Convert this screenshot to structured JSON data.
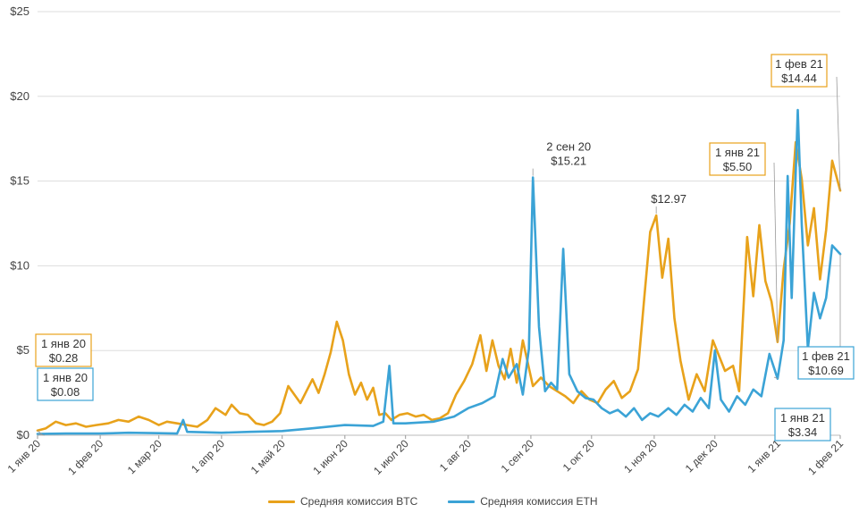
{
  "colors": {
    "btc": "#e8a21b",
    "eth": "#3ba3d6",
    "grid": "#dddddd",
    "leader": "#999999"
  },
  "chart_data": {
    "type": "line",
    "x_range": [
      "2020-01-01",
      "2021-02-01"
    ],
    "ylim": [
      0,
      25
    ],
    "y_ticks": [
      0,
      5,
      10,
      15,
      20,
      25
    ],
    "y_tick_labels": [
      "$0",
      "$5",
      "$10",
      "$15",
      "$20",
      "$25"
    ],
    "x_ticks": [
      "2020-01-01",
      "2020-02-01",
      "2020-03-01",
      "2020-04-01",
      "2020-05-01",
      "2020-06-01",
      "2020-07-01",
      "2020-08-01",
      "2020-09-01",
      "2020-10-01",
      "2020-11-01",
      "2020-12-01",
      "2021-01-01",
      "2021-02-01"
    ],
    "x_tick_labels": [
      "1 янв 20",
      "1 фев 20",
      "1 мар 20",
      "1 апр 20",
      "1 май 20",
      "1 июн 20",
      "1 июл 20",
      "1 авг 20",
      "1 сен 20",
      "1 окт 20",
      "1 ноя 20",
      "1 дек 20",
      "1 янв 21",
      "1 фев 21"
    ],
    "grid": true,
    "legend_position": "bottom",
    "series": [
      {
        "name": "Средняя комиссия BTC",
        "color": "#e8a21b",
        "points": [
          [
            "2020-01-01",
            0.28
          ],
          [
            "2020-01-05",
            0.4
          ],
          [
            "2020-01-10",
            0.8
          ],
          [
            "2020-01-15",
            0.6
          ],
          [
            "2020-01-20",
            0.7
          ],
          [
            "2020-01-25",
            0.5
          ],
          [
            "2020-01-30",
            0.6
          ],
          [
            "2020-02-05",
            0.7
          ],
          [
            "2020-02-10",
            0.9
          ],
          [
            "2020-02-15",
            0.8
          ],
          [
            "2020-02-20",
            1.1
          ],
          [
            "2020-02-25",
            0.9
          ],
          [
            "2020-03-01",
            0.6
          ],
          [
            "2020-03-05",
            0.8
          ],
          [
            "2020-03-10",
            0.7
          ],
          [
            "2020-03-15",
            0.6
          ],
          [
            "2020-03-20",
            0.5
          ],
          [
            "2020-03-25",
            0.9
          ],
          [
            "2020-03-29",
            1.6
          ],
          [
            "2020-04-03",
            1.2
          ],
          [
            "2020-04-06",
            1.8
          ],
          [
            "2020-04-10",
            1.3
          ],
          [
            "2020-04-14",
            1.2
          ],
          [
            "2020-04-18",
            0.7
          ],
          [
            "2020-04-22",
            0.6
          ],
          [
            "2020-04-26",
            0.8
          ],
          [
            "2020-04-30",
            1.3
          ],
          [
            "2020-05-04",
            2.9
          ],
          [
            "2020-05-07",
            2.4
          ],
          [
            "2020-05-10",
            1.9
          ],
          [
            "2020-05-13",
            2.6
          ],
          [
            "2020-05-16",
            3.3
          ],
          [
            "2020-05-19",
            2.5
          ],
          [
            "2020-05-22",
            3.6
          ],
          [
            "2020-05-25",
            4.9
          ],
          [
            "2020-05-28",
            6.7
          ],
          [
            "2020-05-31",
            5.6
          ],
          [
            "2020-06-03",
            3.6
          ],
          [
            "2020-06-06",
            2.4
          ],
          [
            "2020-06-09",
            3.1
          ],
          [
            "2020-06-12",
            2.1
          ],
          [
            "2020-06-15",
            2.8
          ],
          [
            "2020-06-18",
            1.2
          ],
          [
            "2020-06-21",
            1.3
          ],
          [
            "2020-06-24",
            0.9
          ],
          [
            "2020-06-28",
            1.2
          ],
          [
            "2020-07-02",
            1.3
          ],
          [
            "2020-07-06",
            1.1
          ],
          [
            "2020-07-10",
            1.2
          ],
          [
            "2020-07-14",
            0.9
          ],
          [
            "2020-07-18",
            1.0
          ],
          [
            "2020-07-22",
            1.3
          ],
          [
            "2020-07-26",
            2.4
          ],
          [
            "2020-07-30",
            3.2
          ],
          [
            "2020-08-03",
            4.2
          ],
          [
            "2020-08-07",
            5.9
          ],
          [
            "2020-08-10",
            3.8
          ],
          [
            "2020-08-13",
            5.6
          ],
          [
            "2020-08-16",
            4.1
          ],
          [
            "2020-08-19",
            3.3
          ],
          [
            "2020-08-22",
            5.1
          ],
          [
            "2020-08-25",
            3.1
          ],
          [
            "2020-08-28",
            5.6
          ],
          [
            "2020-09-02",
            2.9
          ],
          [
            "2020-09-06",
            3.4
          ],
          [
            "2020-09-10",
            2.9
          ],
          [
            "2020-09-14",
            2.6
          ],
          [
            "2020-09-18",
            2.3
          ],
          [
            "2020-09-22",
            1.9
          ],
          [
            "2020-09-26",
            2.6
          ],
          [
            "2020-09-30",
            2.1
          ],
          [
            "2020-10-04",
            1.9
          ],
          [
            "2020-10-08",
            2.7
          ],
          [
            "2020-10-12",
            3.2
          ],
          [
            "2020-10-16",
            2.2
          ],
          [
            "2020-10-20",
            2.6
          ],
          [
            "2020-10-24",
            3.9
          ],
          [
            "2020-10-27",
            8.0
          ],
          [
            "2020-10-30",
            12.0
          ],
          [
            "2020-11-02",
            12.97
          ],
          [
            "2020-11-05",
            9.3
          ],
          [
            "2020-11-08",
            11.6
          ],
          [
            "2020-11-11",
            6.9
          ],
          [
            "2020-11-14",
            4.4
          ],
          [
            "2020-11-18",
            2.1
          ],
          [
            "2020-11-22",
            3.6
          ],
          [
            "2020-11-26",
            2.6
          ],
          [
            "2020-11-30",
            5.6
          ],
          [
            "2020-12-03",
            4.7
          ],
          [
            "2020-12-06",
            3.8
          ],
          [
            "2020-12-10",
            4.1
          ],
          [
            "2020-12-13",
            2.6
          ],
          [
            "2020-12-17",
            11.7
          ],
          [
            "2020-12-20",
            8.2
          ],
          [
            "2020-12-23",
            12.4
          ],
          [
            "2020-12-26",
            9.1
          ],
          [
            "2020-12-29",
            7.9
          ],
          [
            "2021-01-01",
            5.5
          ],
          [
            "2021-01-04",
            9.8
          ],
          [
            "2021-01-07",
            12.5
          ],
          [
            "2021-01-10",
            17.3
          ],
          [
            "2021-01-13",
            15.1
          ],
          [
            "2021-01-16",
            11.2
          ],
          [
            "2021-01-19",
            13.4
          ],
          [
            "2021-01-22",
            9.2
          ],
          [
            "2021-01-25",
            12.1
          ],
          [
            "2021-01-28",
            16.2
          ],
          [
            "2021-02-01",
            14.44
          ]
        ]
      },
      {
        "name": "Средняя комиссия ETH",
        "color": "#3ba3d6",
        "points": [
          [
            "2020-01-01",
            0.08
          ],
          [
            "2020-01-15",
            0.1
          ],
          [
            "2020-02-01",
            0.1
          ],
          [
            "2020-02-15",
            0.15
          ],
          [
            "2020-03-01",
            0.12
          ],
          [
            "2020-03-10",
            0.1
          ],
          [
            "2020-03-13",
            0.9
          ],
          [
            "2020-03-15",
            0.2
          ],
          [
            "2020-04-01",
            0.15
          ],
          [
            "2020-04-15",
            0.2
          ],
          [
            "2020-05-01",
            0.25
          ],
          [
            "2020-05-15",
            0.4
          ],
          [
            "2020-06-01",
            0.6
          ],
          [
            "2020-06-15",
            0.55
          ],
          [
            "2020-06-20",
            0.8
          ],
          [
            "2020-06-23",
            4.1
          ],
          [
            "2020-06-25",
            0.7
          ],
          [
            "2020-07-01",
            0.7
          ],
          [
            "2020-07-15",
            0.8
          ],
          [
            "2020-07-25",
            1.1
          ],
          [
            "2020-08-01",
            1.6
          ],
          [
            "2020-08-08",
            1.9
          ],
          [
            "2020-08-14",
            2.3
          ],
          [
            "2020-08-18",
            4.5
          ],
          [
            "2020-08-21",
            3.4
          ],
          [
            "2020-08-25",
            4.2
          ],
          [
            "2020-08-28",
            2.4
          ],
          [
            "2020-08-31",
            5.1
          ],
          [
            "2020-09-02",
            15.21
          ],
          [
            "2020-09-05",
            6.4
          ],
          [
            "2020-09-08",
            2.6
          ],
          [
            "2020-09-11",
            3.1
          ],
          [
            "2020-09-14",
            2.7
          ],
          [
            "2020-09-17",
            11.0
          ],
          [
            "2020-09-20",
            3.6
          ],
          [
            "2020-09-24",
            2.6
          ],
          [
            "2020-09-28",
            2.2
          ],
          [
            "2020-10-02",
            2.1
          ],
          [
            "2020-10-06",
            1.6
          ],
          [
            "2020-10-10",
            1.3
          ],
          [
            "2020-10-14",
            1.5
          ],
          [
            "2020-10-18",
            1.1
          ],
          [
            "2020-10-22",
            1.6
          ],
          [
            "2020-10-26",
            0.9
          ],
          [
            "2020-10-30",
            1.3
          ],
          [
            "2020-11-03",
            1.1
          ],
          [
            "2020-11-08",
            1.6
          ],
          [
            "2020-11-12",
            1.2
          ],
          [
            "2020-11-16",
            1.8
          ],
          [
            "2020-11-20",
            1.4
          ],
          [
            "2020-11-24",
            2.2
          ],
          [
            "2020-11-28",
            1.6
          ],
          [
            "2020-12-01",
            5.0
          ],
          [
            "2020-12-04",
            2.1
          ],
          [
            "2020-12-08",
            1.4
          ],
          [
            "2020-12-12",
            2.3
          ],
          [
            "2020-12-16",
            1.8
          ],
          [
            "2020-12-20",
            2.7
          ],
          [
            "2020-12-24",
            2.3
          ],
          [
            "2020-12-28",
            4.8
          ],
          [
            "2021-01-01",
            3.34
          ],
          [
            "2021-01-04",
            5.6
          ],
          [
            "2021-01-06",
            15.3
          ],
          [
            "2021-01-08",
            8.1
          ],
          [
            "2021-01-11",
            19.2
          ],
          [
            "2021-01-13",
            12.4
          ],
          [
            "2021-01-16",
            5.1
          ],
          [
            "2021-01-19",
            8.4
          ],
          [
            "2021-01-22",
            6.9
          ],
          [
            "2021-01-25",
            8.1
          ],
          [
            "2021-01-28",
            11.2
          ],
          [
            "2021-02-01",
            10.69
          ]
        ]
      }
    ],
    "annotations": [
      {
        "series": "btc",
        "date": "1 янв 20",
        "value": "$0.28",
        "x": "2020-01-01",
        "y": 0.28,
        "boxed": true,
        "label_pos": "left-mid"
      },
      {
        "series": "eth",
        "date": "1 янв 20",
        "value": "$0.08",
        "x": "2020-01-01",
        "y": 0.08,
        "boxed": true,
        "label_pos": "left-low"
      },
      {
        "series": "eth",
        "date": "2 сен 20",
        "value": "$15.21",
        "x": "2020-09-02",
        "y": 15.21,
        "boxed": false,
        "label_pos": "above"
      },
      {
        "series": "btc",
        "date": "",
        "value": "$12.97",
        "x": "2020-11-02",
        "y": 12.97,
        "boxed": false,
        "label_pos": "above"
      },
      {
        "series": "btc",
        "date": "1 янв 21",
        "value": "$5.50",
        "x": "2021-01-01",
        "y": 5.5,
        "boxed": true,
        "label_pos": "upper-left"
      },
      {
        "series": "btc",
        "date": "1 фев 21",
        "value": "$14.44",
        "x": "2021-02-01",
        "y": 14.44,
        "boxed": true,
        "label_pos": "top"
      },
      {
        "series": "eth",
        "date": "1 фев 21",
        "value": "$10.69",
        "x": "2021-02-01",
        "y": 10.69,
        "boxed": true,
        "label_pos": "right-low"
      },
      {
        "series": "eth",
        "date": "1 янв 21",
        "value": "$3.34",
        "x": "2021-01-01",
        "y": 3.34,
        "boxed": true,
        "label_pos": "bottom"
      }
    ]
  }
}
